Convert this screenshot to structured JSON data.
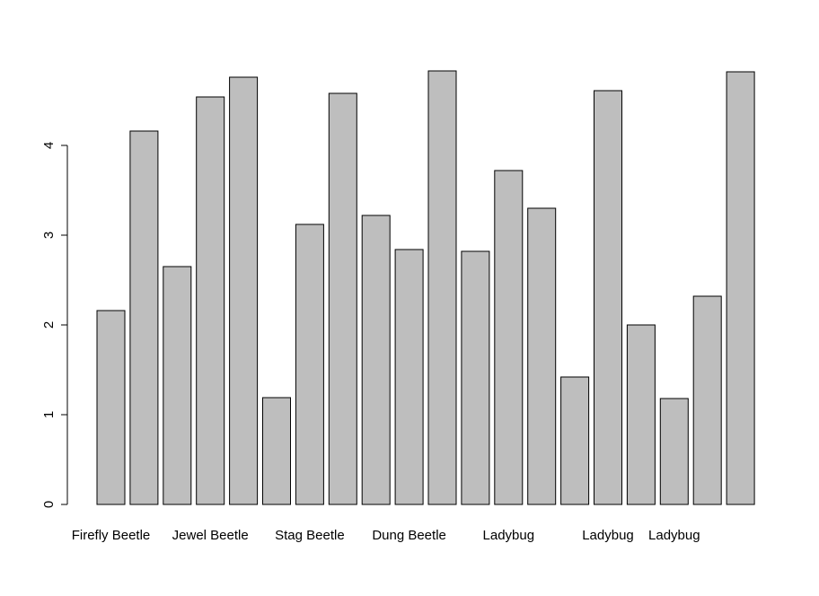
{
  "chart_data": {
    "type": "bar",
    "title": "",
    "xlabel": "",
    "ylabel": "",
    "ylim": [
      0,
      4.83
    ],
    "y_ticks": [
      "0",
      "1",
      "2",
      "3",
      "4"
    ],
    "categories": [
      "Firefly Beetle",
      "",
      "",
      "Jewel Beetle",
      "",
      "",
      "Stag Beetle",
      "",
      "",
      "Dung Beetle",
      "",
      "",
      "Ladybug",
      "",
      "",
      "Ladybug",
      "",
      "Ladybug",
      "",
      ""
    ],
    "values": [
      2.16,
      4.16,
      2.65,
      4.54,
      4.76,
      1.19,
      3.12,
      4.58,
      3.22,
      2.84,
      4.83,
      2.82,
      3.72,
      3.3,
      1.42,
      4.61,
      2.0,
      1.18,
      2.32,
      4.82
    ],
    "bar_color": "#bebebe",
    "grid": false,
    "legend": "none"
  }
}
